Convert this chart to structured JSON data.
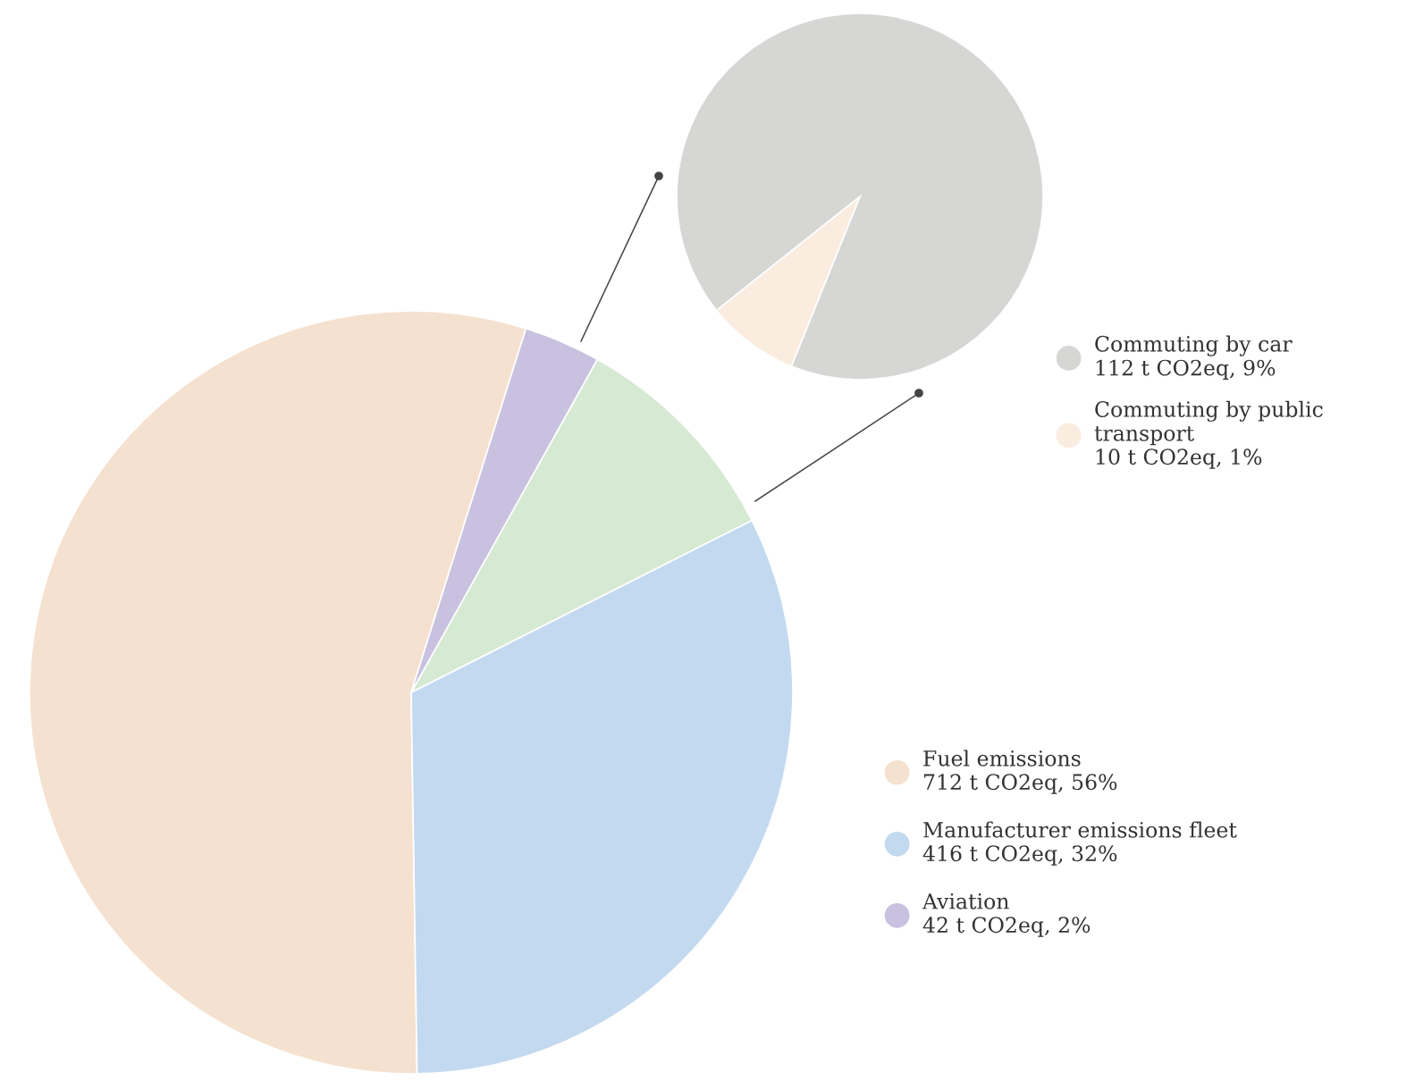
{
  "chart_data": [
    {
      "type": "pie",
      "categories": [
        "Fuel emissions",
        "Manufacturer emissions fleet",
        null,
        "Aviation"
      ],
      "values": [
        712,
        416,
        122,
        42
      ],
      "colors": [
        "#f5e1cf",
        "#c3d9f0",
        "#d6e9d2",
        "#c8c1df"
      ],
      "value_labels": [
        "712 t CO2eq, 56%",
        "416 t CO2eq, 32%",
        null,
        "42 t CO2eq, 2%"
      ],
      "legend": "right"
    },
    {
      "type": "pie",
      "categories": [
        "Commuting by car",
        "Commuting by public transport"
      ],
      "values": [
        112,
        10
      ],
      "colors": [
        "#d6d7d5",
        "#faecdf"
      ],
      "value_labels": [
        "112 t CO2eq, 9%",
        "10 t CO2eq, 1%"
      ],
      "legend": "right"
    }
  ]
}
